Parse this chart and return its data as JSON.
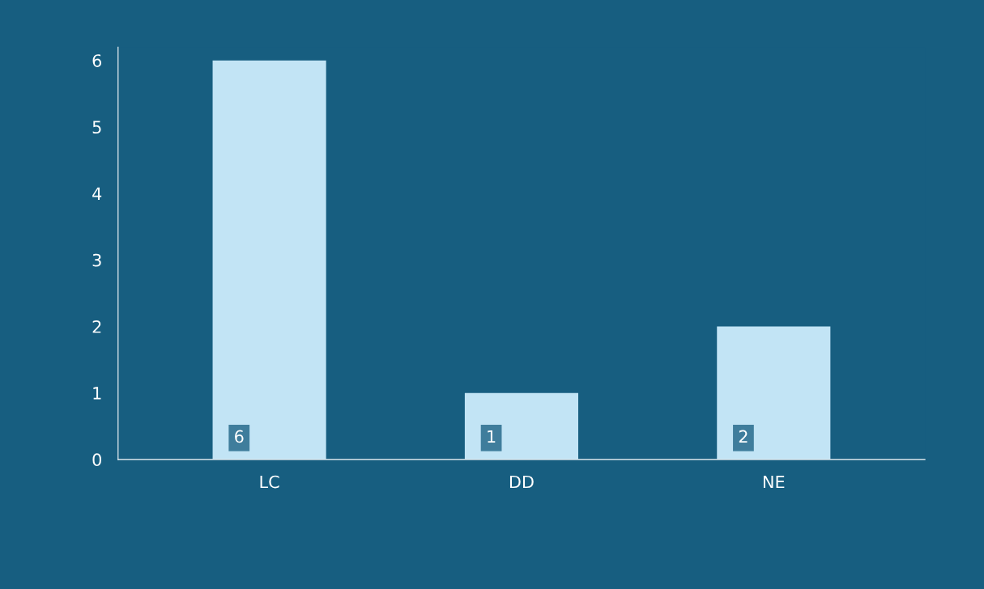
{
  "chart_data": {
    "type": "bar",
    "categories": [
      "LC",
      "DD",
      "NE"
    ],
    "values": [
      6,
      1,
      2
    ],
    "color": "#c2e4f5",
    "ylim": [
      0,
      6.2
    ],
    "yticks": [
      0,
      1,
      2,
      3,
      4,
      5,
      6
    ],
    "grid": false,
    "data_labels": true
  }
}
